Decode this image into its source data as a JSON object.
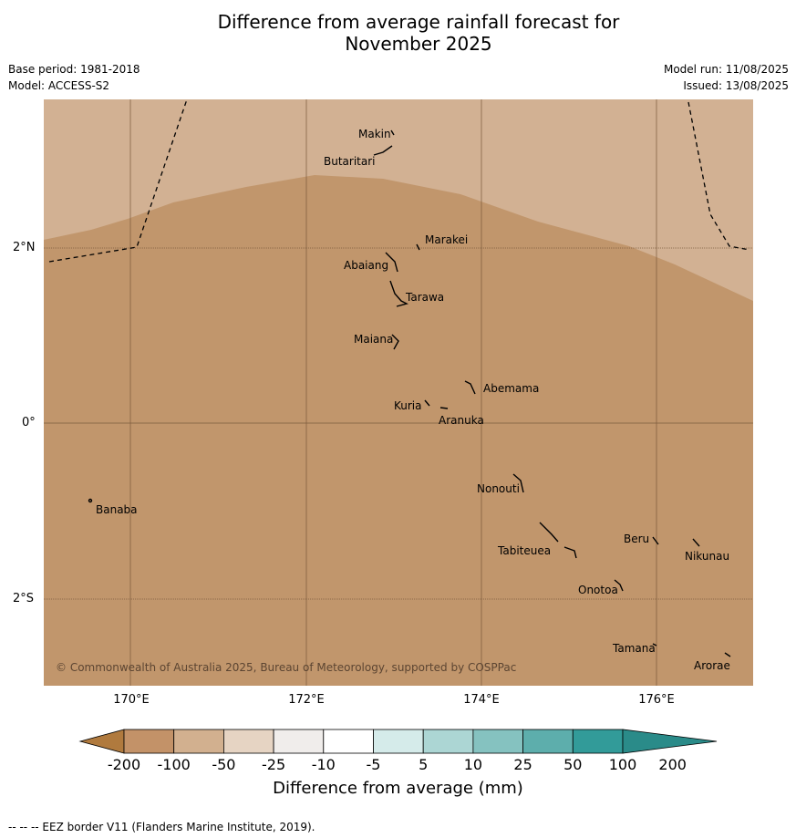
{
  "title_line1": "Difference from average rainfall forecast for",
  "title_line2": "November 2025",
  "base_period": "Base period: 1981-2018",
  "model": "Model: ACCESS-S2",
  "model_run": "Model run: 11/08/2025",
  "issued": "Issued: 13/08/2025",
  "lat_labels": [
    "2°N",
    "0°",
    "2°S"
  ],
  "lon_labels": [
    "170°E",
    "172°E",
    "174°E",
    "176°E"
  ],
  "islands": [
    "Makin",
    "Butaritari",
    "Marakei",
    "Abaiang",
    "Tarawa",
    "Maiana",
    "Abemama",
    "Kuria",
    "Aranuka",
    "Nonouti",
    "Banaba",
    "Beru",
    "Nikunau",
    "Tabiteuea",
    "Onotoa",
    "Tamana",
    "Arorae"
  ],
  "copyright": "© Commonwealth of Australia 2025, Bureau of Meteorology, supported by COSPPac",
  "colorbar": {
    "ticks": [
      "-200",
      "-100",
      "-50",
      "-25",
      "-10",
      "-5",
      "5",
      "10",
      "25",
      "50",
      "100",
      "200"
    ],
    "colors": [
      "#b07a3e",
      "#c39268",
      "#d2b08f",
      "#e6d4c3",
      "#f0edeb",
      "#ffffff",
      "#d5ebea",
      "#acd6d4",
      "#85c2c0",
      "#5daeac",
      "#329b99",
      "#2a8b89"
    ],
    "label": "Difference from average (mm)"
  },
  "map_colors": {
    "dry_light": "#d2b193",
    "dry_dark": "#c1966c"
  },
  "footnote": "--  --  -- EEZ border V11 (Flanders Marine Institute, 2019)."
}
